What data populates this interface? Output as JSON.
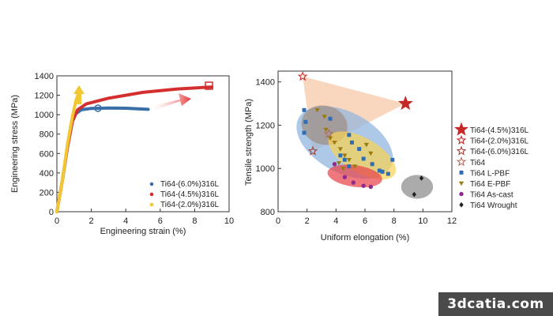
{
  "watermark": "3dcatia.com",
  "chart_data": [
    {
      "type": "line",
      "xlabel": "Engineering strain (%)",
      "ylabel": "Engineering stress (MPa)",
      "xlim": [
        0,
        10
      ],
      "ylim": [
        0,
        1400
      ],
      "xticks": [
        "0",
        "2",
        "4",
        "6",
        "8",
        "10"
      ],
      "yticks": [
        "0",
        "200",
        "400",
        "600",
        "800",
        "1000",
        "1200",
        "1400"
      ],
      "legend_position": "bottom-right",
      "series": [
        {
          "name": "Ti64-(6.0%)316L",
          "color": "#3a6ea8",
          "points": [
            [
              0,
              0
            ],
            [
              0.3,
              300
            ],
            [
              0.6,
              650
            ],
            [
              0.9,
              930
            ],
            [
              1.1,
              1010
            ],
            [
              1.4,
              1050
            ],
            [
              2,
              1065
            ],
            [
              3,
              1068
            ],
            [
              4,
              1066
            ],
            [
              5.3,
              1055
            ]
          ]
        },
        {
          "name": "Ti64-(4.5%)316L",
          "color": "#d32f2f",
          "points": [
            [
              0,
              0
            ],
            [
              0.3,
              300
            ],
            [
              0.6,
              650
            ],
            [
              0.9,
              930
            ],
            [
              1.2,
              1050
            ],
            [
              1.7,
              1110
            ],
            [
              3,
              1170
            ],
            [
              5,
              1230
            ],
            [
              7,
              1265
            ],
            [
              9,
              1285
            ]
          ]
        },
        {
          "name": "Ti64-(2.0%)316L",
          "color": "#f2c733",
          "points": [
            [
              0,
              0
            ],
            [
              0.3,
              300
            ],
            [
              0.6,
              680
            ],
            [
              0.9,
              980
            ],
            [
              1.1,
              1140
            ],
            [
              1.3,
              1245
            ]
          ]
        }
      ]
    },
    {
      "type": "scatter",
      "xlabel": "Uniform elongation (%)",
      "ylabel": "Tensile strength (MPa)",
      "xlim": [
        0,
        12
      ],
      "ylim": [
        800,
        1450
      ],
      "xticks": [
        "0",
        "2",
        "4",
        "6",
        "8",
        "10",
        "12"
      ],
      "yticks": [
        "800",
        "1000",
        "1200",
        "1400"
      ],
      "legend_position": "right",
      "legend": [
        {
          "label": "Ti64-(4.5%)316L",
          "marker": "star-filled",
          "color": "#c62828"
        },
        {
          "label": "Ti64-(2.0%)316L",
          "marker": "star-outline",
          "color": "#c62828"
        },
        {
          "label": "Ti64-(6.0%)316L",
          "marker": "star-outline",
          "color": "#a1453a"
        },
        {
          "label": "Ti64",
          "marker": "star-outline",
          "color": "#b07060"
        },
        {
          "label": "Ti64 L-PBF",
          "marker": "square",
          "color": "#2e6db4"
        },
        {
          "label": "Ti64 E-PBF",
          "marker": "triangle-down",
          "color": "#9c7a10"
        },
        {
          "label": "Ti64 As-cast",
          "marker": "circle",
          "color": "#8e2a8e"
        },
        {
          "label": "Ti64 Wrought",
          "marker": "diamond",
          "color": "#222222"
        }
      ],
      "series": [
        {
          "name": "Ti64-(4.5%)316L",
          "marker": "star-filled",
          "color": "#c62828",
          "points": [
            [
              8.8,
              1300
            ]
          ]
        },
        {
          "name": "Ti64-(2.0%)316L",
          "marker": "star-outline",
          "color": "#c62828",
          "points": [
            [
              1.7,
              1425
            ]
          ]
        },
        {
          "name": "Ti64-(6.0%)316L",
          "marker": "star-outline",
          "color": "#a1453a",
          "points": [
            [
              2.4,
              1080
            ]
          ]
        },
        {
          "name": "Ti64",
          "marker": "star-outline",
          "color": "#b07060",
          "points": [
            [
              3.5,
              1160
            ]
          ]
        },
        {
          "name": "Ti64 L-PBF",
          "marker": "square",
          "color": "#2e6db4",
          "points": [
            [
              1.8,
              1270
            ],
            [
              1.9,
              1215
            ],
            [
              1.8,
              1165
            ],
            [
              3.6,
              1230
            ],
            [
              4.9,
              1155
            ],
            [
              5.1,
              1120
            ],
            [
              5.6,
              1090
            ],
            [
              4.3,
              1060
            ],
            [
              4.6,
              1040
            ],
            [
              4.9,
              1010
            ],
            [
              5.9,
              1045
            ],
            [
              6.5,
              1020
            ],
            [
              7.0,
              990
            ],
            [
              7.2,
              985
            ],
            [
              7.6,
              975
            ],
            [
              7.9,
              1040
            ]
          ]
        },
        {
          "name": "Ti64 E-PBF",
          "marker": "triangle-down",
          "color": "#9c7a10",
          "points": [
            [
              2.7,
              1270
            ],
            [
              3.2,
              1240
            ],
            [
              3.3,
              1180
            ],
            [
              3.6,
              1140
            ],
            [
              3.9,
              1120
            ],
            [
              4.3,
              1090
            ],
            [
              4.6,
              1060
            ],
            [
              4.9,
              1040
            ],
            [
              5.3,
              1010
            ],
            [
              6.1,
              1110
            ],
            [
              6.4,
              1070
            ],
            [
              4.2,
              1025
            ],
            [
              4.5,
              1000
            ]
          ]
        },
        {
          "name": "Ti64 As-cast",
          "marker": "circle",
          "color": "#8e2a8e",
          "points": [
            [
              3.9,
              1020
            ],
            [
              4.6,
              960
            ],
            [
              5.2,
              935
            ],
            [
              5.9,
              920
            ],
            [
              6.4,
              915
            ]
          ]
        },
        {
          "name": "Ti64 Wrought",
          "marker": "diamond",
          "color": "#222222",
          "points": [
            [
              9.9,
              955
            ],
            [
              9.4,
              880
            ]
          ]
        }
      ],
      "regions": [
        {
          "name": "Ti64-(x%)316L",
          "color": "#f7c9a8",
          "polygon": [
            [
              1.7,
              1425
            ],
            [
              8.8,
              1300
            ],
            [
              2.4,
              1080
            ]
          ]
        },
        {
          "name": "Ti64 L-PBF",
          "color": "#8fb4de",
          "ellipse": {
            "cx": 4.6,
            "cy": 1120,
            "rx": 3.6,
            "ry": 140,
            "angle_deg": 28
          }
        },
        {
          "name": "Ti64",
          "color": "#9e8f86",
          "ellipse": {
            "cx": 3.2,
            "cy": 1200,
            "rx": 1.6,
            "ry": 90,
            "angle_deg": 15
          }
        },
        {
          "name": "Ti64 E-PBF",
          "color": "#f6d258",
          "ellipse": {
            "cx": 5.8,
            "cy": 1060,
            "rx": 2.6,
            "ry": 80,
            "angle_deg": 30
          }
        },
        {
          "name": "Ti64 As-cast",
          "color": "#e8444c",
          "ellipse": {
            "cx": 5.3,
            "cy": 965,
            "rx": 1.9,
            "ry": 50,
            "angle_deg": 8
          }
        },
        {
          "name": "Ti64 Wrought",
          "color": "#8a8a8a",
          "ellipse": {
            "cx": 9.6,
            "cy": 915,
            "rx": 1.1,
            "ry": 55,
            "angle_deg": 0
          }
        }
      ]
    }
  ]
}
